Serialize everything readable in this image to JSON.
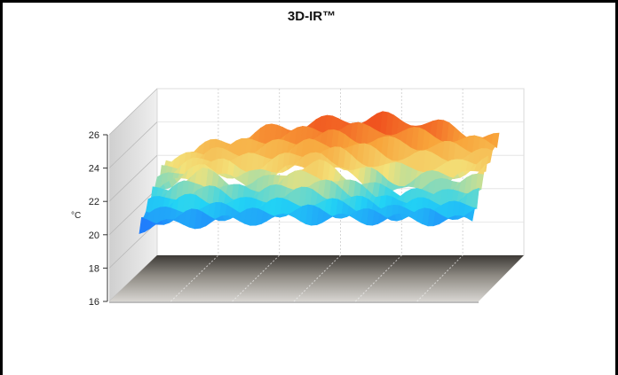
{
  "chart_data": {
    "type": "3d-surface",
    "title": "3D-IR™",
    "ylabel": "°C",
    "zlim": [
      16,
      26
    ],
    "z_ticks": [
      16,
      18,
      20,
      22,
      24,
      26
    ],
    "grid": true,
    "colormap": [
      "#1f5fff",
      "#22d3f5",
      "#f3e27a",
      "#f8a43a",
      "#ee3c17"
    ],
    "x": [
      0,
      0.05,
      0.1,
      0.15,
      0.2,
      0.25,
      0.3,
      0.35,
      0.4,
      0.45,
      0.5,
      0.55,
      0.6,
      0.65,
      0.7,
      0.75,
      0.8,
      0.85,
      0.9,
      0.95,
      1.0
    ],
    "series": [
      {
        "values": [
          22.3,
          22.6,
          23.0,
          23.3,
          23.5,
          23.8,
          24.1,
          24.3,
          24.4,
          24.6,
          24.7,
          24.8,
          24.8,
          24.9,
          24.8,
          24.7,
          24.5,
          24.3,
          24.0,
          23.8,
          23.6
        ]
      },
      {
        "values": [
          21.2,
          21.5,
          22.0,
          22.3,
          22.1,
          21.7,
          21.6,
          21.9,
          22.4,
          22.7,
          22.8,
          22.5,
          22.0,
          21.6,
          21.2,
          21.1,
          21.4,
          21.6,
          21.8,
          22.2,
          22.7
        ]
      },
      {
        "values": [
          19.8,
          19.9,
          20.0,
          20.1,
          20.1,
          20.2,
          20.2,
          20.3,
          20.3,
          20.3,
          20.3,
          20.3,
          20.3,
          20.3,
          20.3,
          20.3,
          20.3,
          20.3,
          20.2,
          20.2,
          20.2
        ]
      }
    ]
  }
}
